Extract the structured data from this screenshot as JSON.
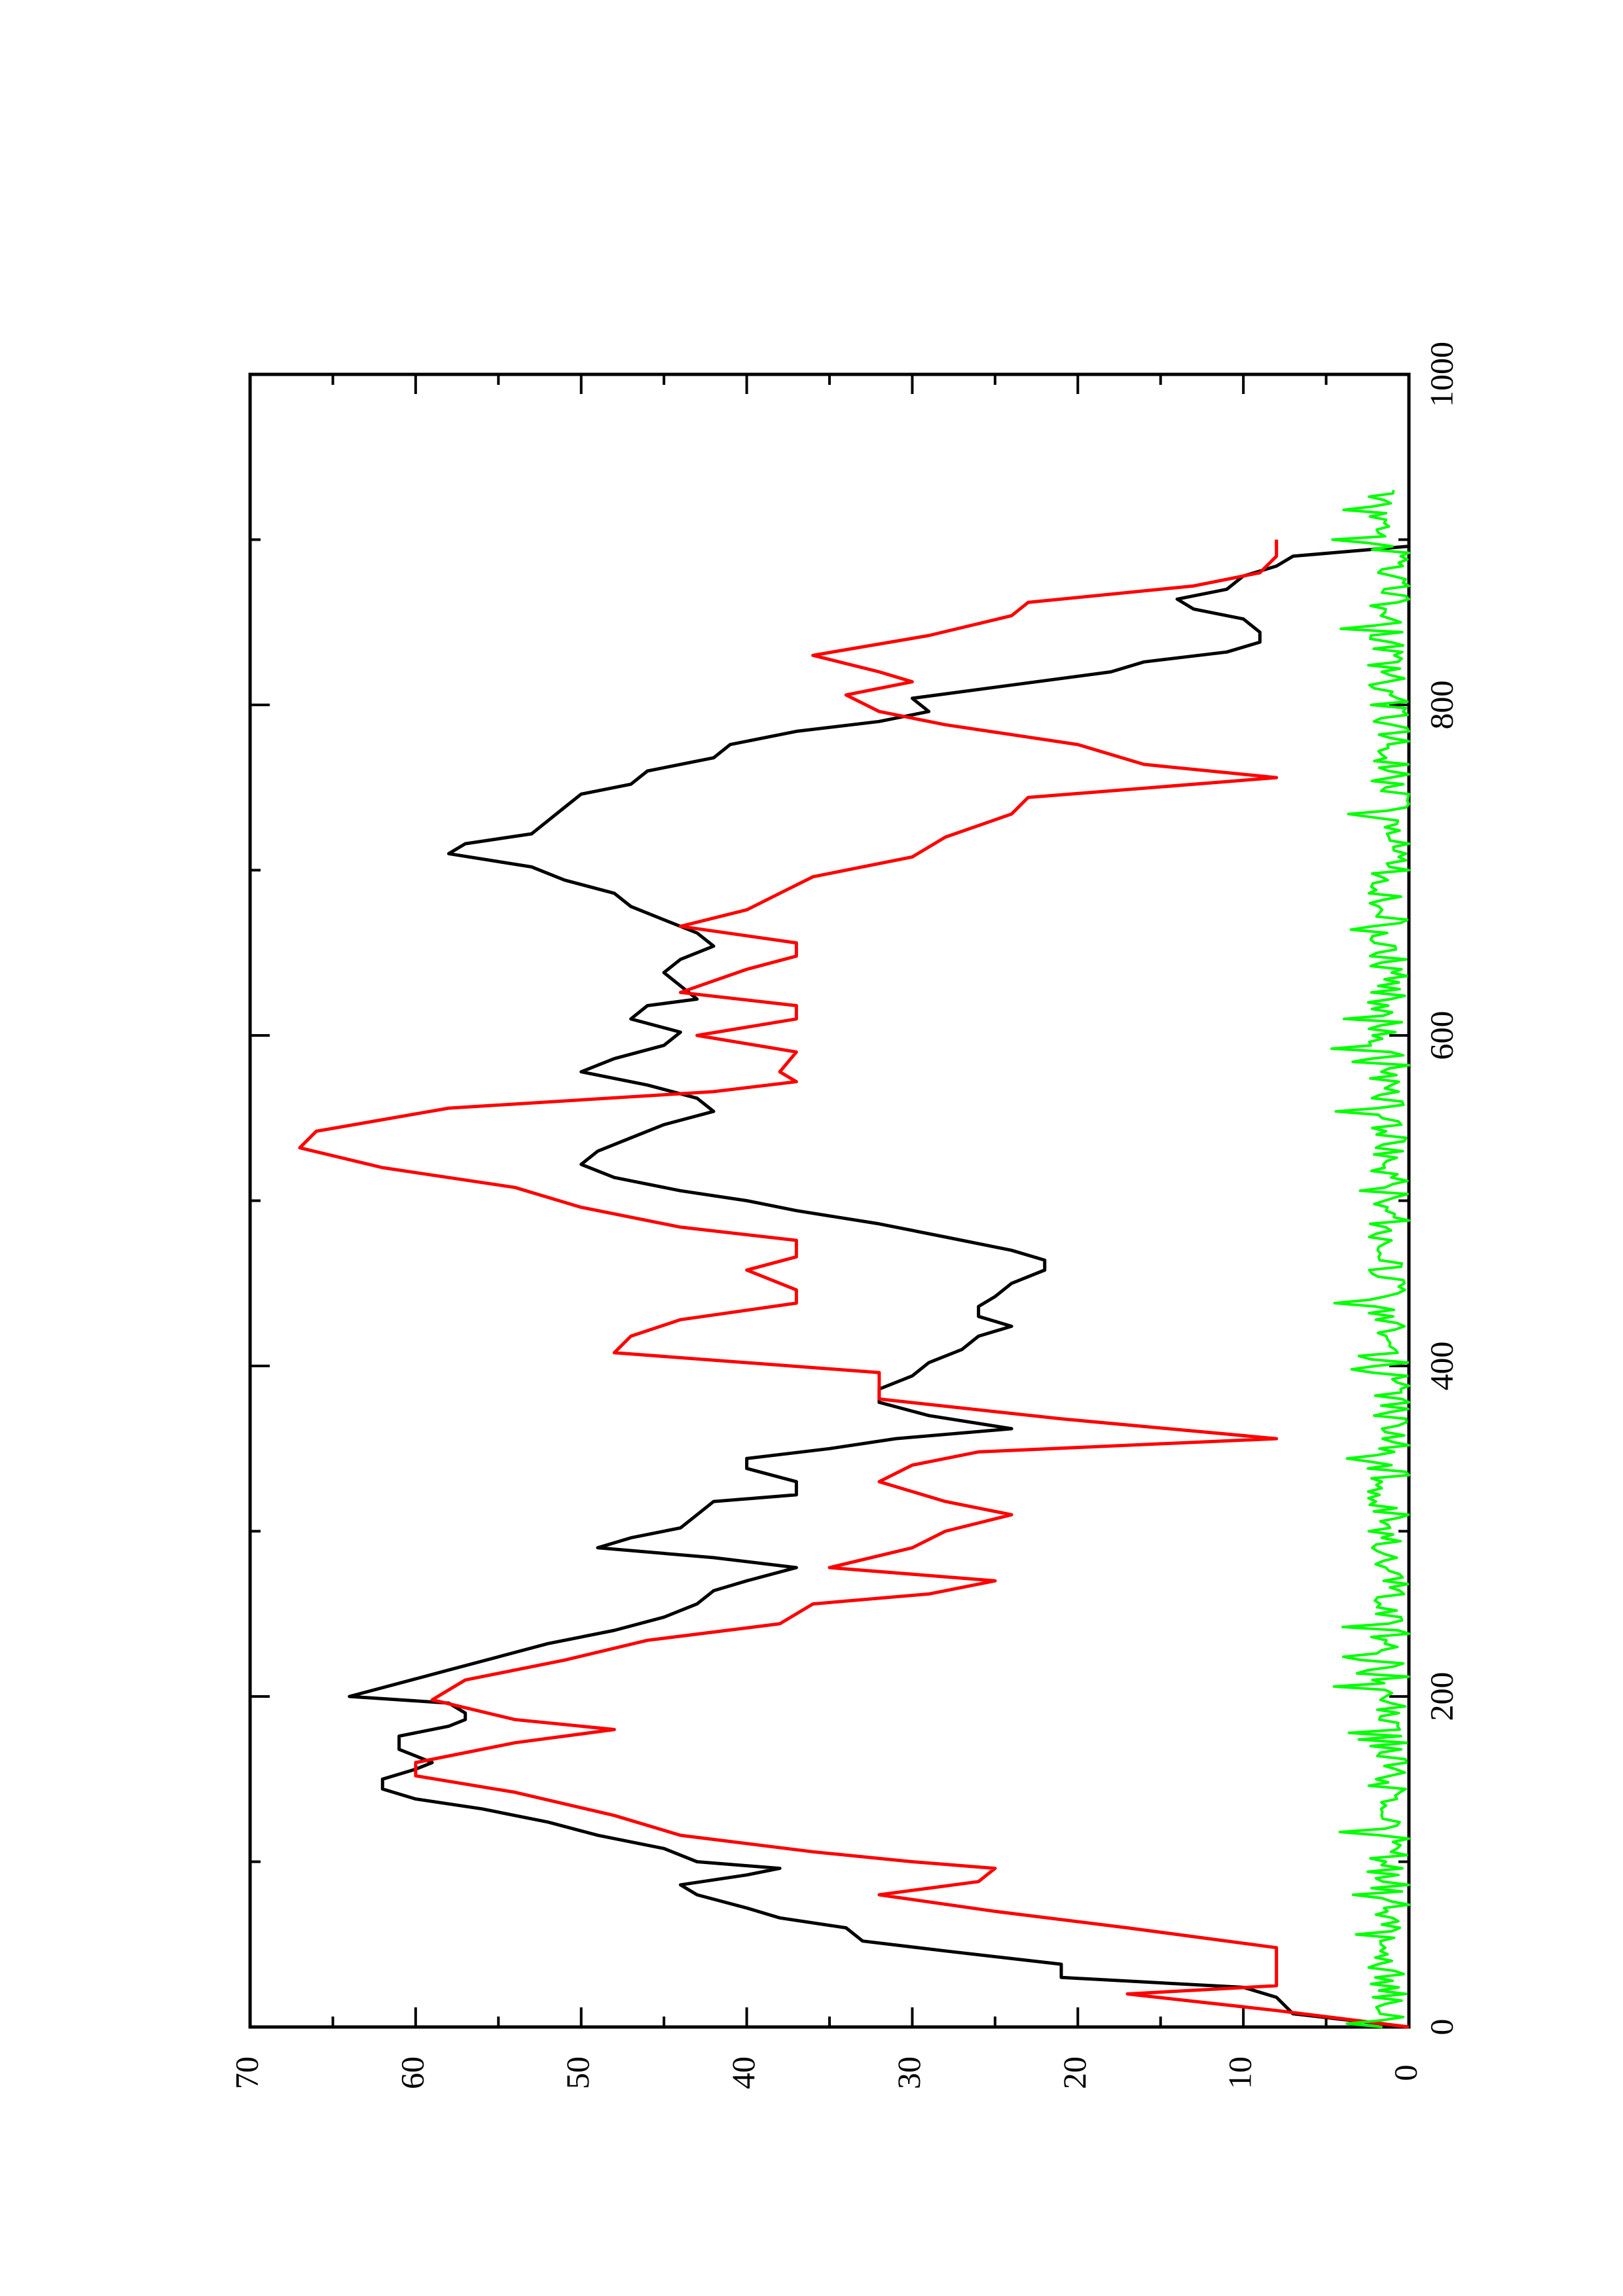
{
  "chart_data": {
    "type": "line",
    "title": "",
    "xlabel": "",
    "ylabel": "",
    "orientation": "rotated-90-counterclockwise",
    "xlim": [
      0,
      1000
    ],
    "ylim": [
      0,
      70
    ],
    "x_ticks": [
      "0",
      "200",
      "400",
      "600",
      "800",
      "1000"
    ],
    "y_ticks": [
      "0",
      "10",
      "20",
      "30",
      "40",
      "50",
      "60",
      "70"
    ],
    "grid": false,
    "legend": "none",
    "series": [
      {
        "color": "#000000",
        "x": [
          0,
          8,
          18,
          24,
          30,
          38,
          46,
          52,
          60,
          66,
          72,
          80,
          86,
          92,
          96,
          100,
          108,
          116,
          124,
          132,
          138,
          144,
          150,
          156,
          160,
          168,
          176,
          182,
          186,
          190,
          196,
          200,
          208,
          216,
          224,
          232,
          240,
          248,
          256,
          264,
          270,
          278,
          284,
          290,
          296,
          302,
          310,
          318,
          322,
          330,
          338,
          344,
          350,
          356,
          362,
          370,
          378,
          386,
          394,
          402,
          410,
          418,
          424,
          430,
          436,
          442,
          450,
          458,
          464,
          470,
          478,
          486,
          494,
          500,
          506,
          514,
          522,
          530,
          538,
          546,
          554,
          562,
          570,
          578,
          586,
          594,
          602,
          610,
          618,
          622,
          630,
          638,
          646,
          654,
          662,
          670,
          678,
          686,
          694,
          702,
          710,
          716,
          722,
          730,
          738,
          746,
          752,
          760,
          768,
          776,
          784,
          790,
          796,
          804,
          812,
          820,
          826,
          832,
          838,
          844,
          852,
          858,
          864,
          870,
          878,
          884,
          890,
          896
        ],
        "y": [
          0,
          7,
          8,
          10,
          21,
          21,
          28,
          33,
          34,
          38,
          40,
          43,
          44,
          40,
          38,
          43,
          45,
          49,
          52,
          56,
          60,
          62,
          62,
          60,
          59,
          61,
          61,
          58,
          57,
          57,
          58,
          64,
          61,
          58,
          55,
          52,
          48,
          45,
          43,
          42,
          40,
          37,
          42,
          49,
          47,
          44,
          43,
          42,
          37,
          37,
          40,
          40,
          35,
          31,
          24,
          29,
          32,
          32,
          30,
          29,
          27,
          26,
          24,
          26,
          26,
          25,
          24,
          22,
          22,
          24,
          28,
          32,
          37,
          40,
          44,
          48,
          50,
          49,
          47,
          45,
          42,
          43,
          46,
          50,
          48,
          45,
          44,
          47,
          46,
          43,
          44,
          45,
          44,
          42,
          43,
          45,
          47,
          48,
          51,
          53,
          58,
          57,
          53,
          52,
          51,
          50,
          47,
          46,
          42,
          41,
          37,
          32,
          29,
          30,
          24,
          18,
          16,
          11,
          9,
          9,
          10,
          13,
          14,
          11,
          10,
          8,
          7,
          0
        ]
      },
      {
        "color": "#ff0000",
        "x": [
          0,
          10,
          20,
          25,
          36,
          48,
          60,
          70,
          80,
          88,
          96,
          100,
          106,
          116,
          128,
          142,
          152,
          160,
          172,
          180,
          186,
          198,
          210,
          222,
          234,
          244,
          256,
          262,
          270,
          278,
          290,
          300,
          310,
          318,
          330,
          340,
          348,
          356,
          368,
          380,
          396,
          408,
          418,
          428,
          438,
          446,
          458,
          466,
          476,
          484,
          496,
          508,
          520,
          532,
          542,
          556,
          566,
          572,
          578,
          590,
          600,
          610,
          618,
          626,
          640,
          648,
          656,
          666,
          676,
          686,
          696,
          708,
          720,
          734,
          744,
          756,
          764,
          776,
          788,
          796,
          806,
          814,
          820,
          830,
          842,
          854,
          862,
          872,
          880,
          890,
          900
        ],
        "y": [
          0,
          8,
          17,
          8,
          8,
          8,
          17,
          25,
          32,
          26,
          25,
          30,
          36,
          44,
          48,
          54,
          60,
          60,
          54,
          48,
          54,
          59,
          57,
          51,
          46,
          38,
          36,
          29,
          25,
          35,
          30,
          28,
          24,
          28,
          32,
          30,
          26,
          8,
          21,
          32,
          32,
          48,
          47,
          44,
          37,
          37,
          40,
          37,
          37,
          44,
          50,
          54,
          62,
          67,
          66,
          58,
          42,
          37,
          38,
          37,
          43,
          37,
          37,
          44,
          40,
          37,
          37,
          44,
          40,
          38,
          36,
          30,
          28,
          24,
          23,
          8,
          16,
          20,
          28,
          32,
          34,
          30,
          32,
          36,
          29,
          24,
          23,
          13,
          9,
          8,
          8
        ]
      },
      {
        "color": "#00ff00",
        "noise_band": true,
        "x_range": [
          0,
          930
        ],
        "y_range": [
          0,
          5
        ],
        "mean": 1.2
      }
    ]
  }
}
